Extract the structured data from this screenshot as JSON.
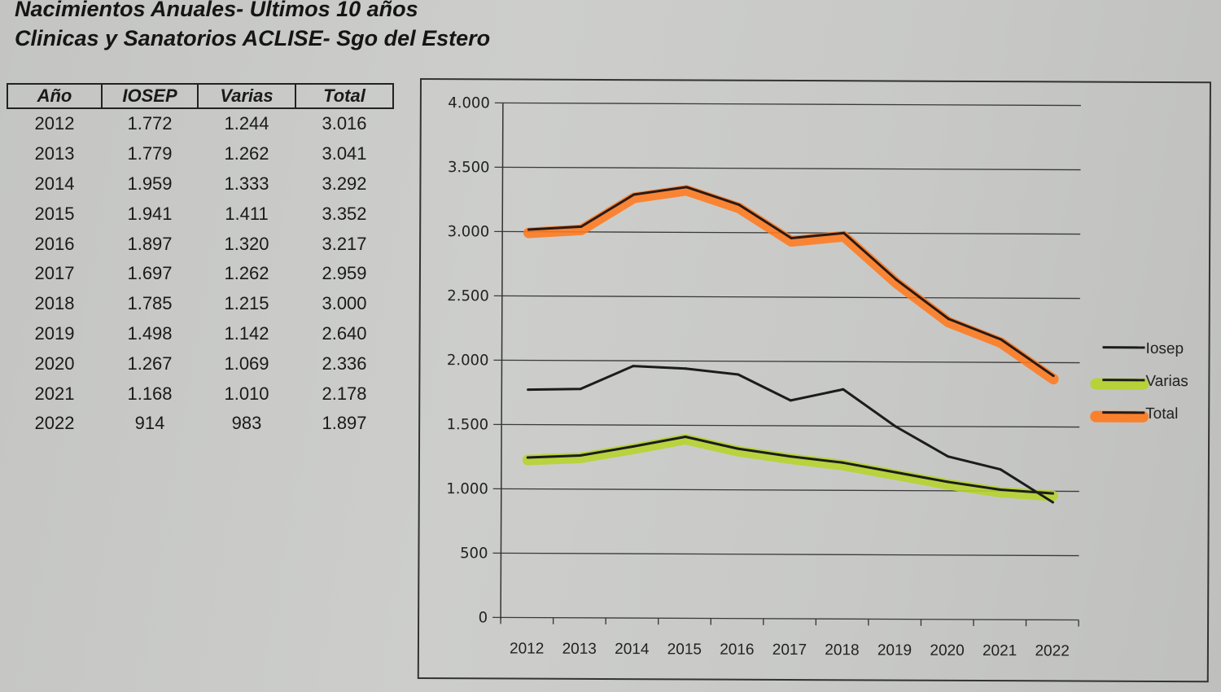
{
  "title_line1": "Nacimientos Anuales- Ultimos 10 años",
  "title_line2": "Clinicas y Sanatorios ACLISE- Sgo del Estero",
  "table": {
    "headers": [
      "Año",
      "IOSEP",
      "Varias",
      "Total"
    ],
    "rows": [
      [
        "2012",
        "1.772",
        "1.244",
        "3.016"
      ],
      [
        "2013",
        "1.779",
        "1.262",
        "3.041"
      ],
      [
        "2014",
        "1.959",
        "1.333",
        "3.292"
      ],
      [
        "2015",
        "1.941",
        "1.411",
        "3.352"
      ],
      [
        "2016",
        "1.897",
        "1.320",
        "3.217"
      ],
      [
        "2017",
        "1.697",
        "1.262",
        "2.959"
      ],
      [
        "2018",
        "1.785",
        "1.215",
        "3.000"
      ],
      [
        "2019",
        "1.498",
        "1.142",
        "2.640"
      ],
      [
        "2020",
        "1.267",
        "1.069",
        "2.336"
      ],
      [
        "2021",
        "1.168",
        "1.010",
        "2.178"
      ],
      [
        "2022",
        "914",
        "983",
        "1.897"
      ]
    ]
  },
  "chart_data": {
    "type": "line",
    "title": "",
    "xlabel": "",
    "ylabel": "",
    "categories": [
      "2012",
      "2013",
      "2014",
      "2015",
      "2016",
      "2017",
      "2018",
      "2019",
      "2020",
      "2021",
      "2022"
    ],
    "series": [
      {
        "name": "Iosep",
        "values": [
          1772,
          1779,
          1959,
          1941,
          1897,
          1697,
          1785,
          1498,
          1267,
          1168,
          914
        ],
        "line_color": "#1c1c1c",
        "highlight_color": ""
      },
      {
        "name": "Varias",
        "values": [
          1244,
          1262,
          1333,
          1411,
          1320,
          1262,
          1215,
          1142,
          1069,
          1010,
          983
        ],
        "line_color": "#1c1c1c",
        "highlight_color": "#b5d42a"
      },
      {
        "name": "Total",
        "values": [
          3016,
          3041,
          3292,
          3352,
          3217,
          2959,
          3000,
          2640,
          2336,
          2178,
          1897
        ],
        "line_color": "#2a1a14",
        "highlight_color": "#ff7a1f"
      }
    ],
    "ylim": [
      0,
      4000
    ],
    "yticks": [
      0,
      500,
      1000,
      1500,
      2000,
      2500,
      3000,
      3500,
      4000
    ],
    "ytick_labels": [
      "0",
      "500",
      "1.000",
      "1.500",
      "2.000",
      "2.500",
      "3.000",
      "3.500",
      "4.000"
    ],
    "grid": true,
    "legend_position": "right"
  }
}
